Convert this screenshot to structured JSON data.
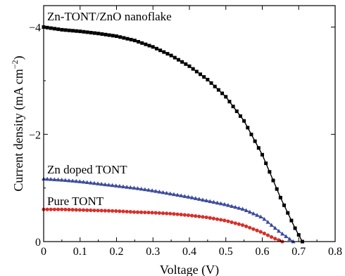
{
  "chart_data": {
    "type": "line",
    "title": "",
    "xlabel": "Voltage (V)",
    "ylabel_main": "Current density (mA cm",
    "ylabel_sup": "−2",
    "ylabel_close": ")",
    "xlim": [
      0,
      0.8
    ],
    "ylim": [
      0,
      -4.4
    ],
    "x_ticks": [
      0,
      0.1,
      0.2,
      0.3,
      0.4,
      0.5,
      0.6,
      0.7,
      0.8
    ],
    "x_tick_labels": [
      "0",
      "0.1",
      "0.2",
      "0.3",
      "0.4",
      "0.5",
      "0.6",
      "0.7",
      "0.8"
    ],
    "y_ticks": [
      0,
      -2,
      -4
    ],
    "y_tick_labels": [
      "0",
      "−2",
      "−4"
    ],
    "grid": false,
    "series": [
      {
        "name": "Zn-TONT/ZnO nanoflake",
        "color": "#000000",
        "marker": "square",
        "x": [
          0.0,
          0.05,
          0.1,
          0.15,
          0.2,
          0.25,
          0.3,
          0.35,
          0.4,
          0.45,
          0.5,
          0.55,
          0.6,
          0.65,
          0.69,
          0.71
        ],
        "y": [
          -4.0,
          -3.95,
          -3.92,
          -3.88,
          -3.83,
          -3.75,
          -3.63,
          -3.47,
          -3.27,
          -3.02,
          -2.7,
          -2.25,
          -1.62,
          -0.82,
          -0.25,
          0.0
        ]
      },
      {
        "name": "Zn doped TONT",
        "color": "#3b4a9c",
        "marker": "triangle",
        "x": [
          0.0,
          0.05,
          0.1,
          0.15,
          0.2,
          0.25,
          0.3,
          0.35,
          0.4,
          0.45,
          0.5,
          0.55,
          0.6,
          0.65,
          0.685
        ],
        "y": [
          -1.17,
          -1.15,
          -1.12,
          -1.08,
          -1.04,
          -1.0,
          -0.95,
          -0.89,
          -0.83,
          -0.76,
          -0.69,
          -0.6,
          -0.45,
          -0.17,
          0.0
        ]
      },
      {
        "name": "Pure TONT",
        "color": "#d6302a",
        "marker": "circle",
        "x": [
          0.0,
          0.05,
          0.1,
          0.15,
          0.2,
          0.25,
          0.3,
          0.35,
          0.4,
          0.45,
          0.5,
          0.55,
          0.6,
          0.63,
          0.655
        ],
        "y": [
          -0.6,
          -0.6,
          -0.59,
          -0.58,
          -0.57,
          -0.55,
          -0.54,
          -0.52,
          -0.49,
          -0.45,
          -0.39,
          -0.3,
          -0.17,
          -0.07,
          0.0
        ]
      }
    ],
    "annotations": [
      {
        "text": "Zn-TONT/ZnO nanoflake",
        "series": 0
      },
      {
        "text": "Zn doped TONT",
        "series": 1
      },
      {
        "text": "Pure TONT",
        "series": 2
      }
    ]
  }
}
